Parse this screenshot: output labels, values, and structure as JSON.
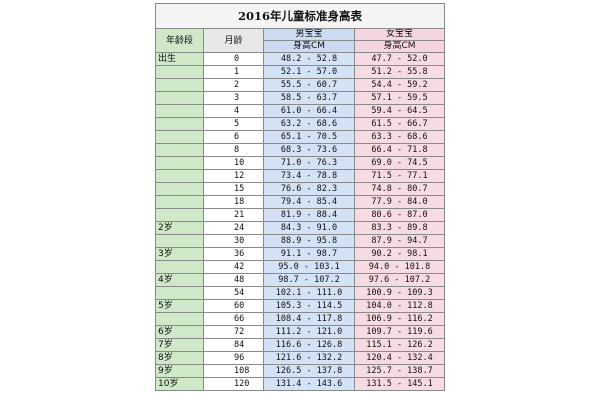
{
  "title": "2016年儿童标准身高表",
  "headers": {
    "age_group": "年龄段",
    "month": "月龄",
    "boy": "男宝宝",
    "girl": "女宝宝",
    "boy_unit": "身高CM",
    "girl_unit": "身高CM"
  },
  "rows": [
    {
      "age": "出生",
      "month": "0",
      "boy": "48.2 - 52.8",
      "girl": "47.7 - 52.0"
    },
    {
      "age": "",
      "month": "1",
      "boy": "52.1 - 57.0",
      "girl": "51.2 - 55.8"
    },
    {
      "age": "",
      "month": "2",
      "boy": "55.5 - 60.7",
      "girl": "54.4 - 59.2"
    },
    {
      "age": "",
      "month": "3",
      "boy": "58.5 - 63.7",
      "girl": "57.1 - 59.5"
    },
    {
      "age": "",
      "month": "4",
      "boy": "61.0 - 66.4",
      "girl": "59.4 - 64.5"
    },
    {
      "age": "",
      "month": "5",
      "boy": "63.2 - 68.6",
      "girl": "61.5 - 66.7"
    },
    {
      "age": "",
      "month": "6",
      "boy": "65.1 - 70.5",
      "girl": "63.3 - 68.6"
    },
    {
      "age": "",
      "month": "8",
      "boy": "68.3 - 73.6",
      "girl": "66.4 - 71.8"
    },
    {
      "age": "",
      "month": "10",
      "boy": "71.0 - 76.3",
      "girl": "69.0 - 74.5"
    },
    {
      "age": "",
      "month": "12",
      "boy": "73.4 - 78.8",
      "girl": "71.5 - 77.1"
    },
    {
      "age": "",
      "month": "15",
      "boy": "76.6 - 82.3",
      "girl": "74.8 - 80.7"
    },
    {
      "age": "",
      "month": "18",
      "boy": "79.4 - 85.4",
      "girl": "77.9 - 84.0"
    },
    {
      "age": "",
      "month": "21",
      "boy": "81.9 - 88.4",
      "girl": "80.6 - 87.0"
    },
    {
      "age": "2岁",
      "month": "24",
      "boy": "84.3 - 91.0",
      "girl": "83.3 - 89.8"
    },
    {
      "age": "",
      "month": "30",
      "boy": "88.9 - 95.8",
      "girl": "87.9 - 94.7"
    },
    {
      "age": "3岁",
      "month": "36",
      "boy": "91.1 - 98.7",
      "girl": "90.2 - 98.1"
    },
    {
      "age": "",
      "month": "42",
      "boy": "95.0 - 103.1",
      "girl": "94.0 - 101.8"
    },
    {
      "age": "4岁",
      "month": "48",
      "boy": "98.7 - 107.2",
      "girl": "97.6 - 107.2"
    },
    {
      "age": "",
      "month": "54",
      "boy": "102.1 - 111.0",
      "girl": "100.9 - 109.3"
    },
    {
      "age": "5岁",
      "month": "60",
      "boy": "105.3 - 114.5",
      "girl": "104.0 - 112.8"
    },
    {
      "age": "",
      "month": "66",
      "boy": "108.4 - 117.8",
      "girl": "106.9 - 116.2"
    },
    {
      "age": "6岁",
      "month": "72",
      "boy": "111.2 - 121.0",
      "girl": "109.7 - 119.6"
    },
    {
      "age": "7岁",
      "month": "84",
      "boy": "116.6 - 126.8",
      "girl": "115.1 - 126.2"
    },
    {
      "age": "8岁",
      "month": "96",
      "boy": "121.6 - 132.2",
      "girl": "120.4 - 132.4"
    },
    {
      "age": "9岁",
      "month": "108",
      "boy": "126.5 - 137.8",
      "girl": "125.7 - 138.7"
    },
    {
      "age": "10岁",
      "month": "120",
      "boy": "131.4 - 143.6",
      "girl": "131.5 - 145.1"
    }
  ]
}
